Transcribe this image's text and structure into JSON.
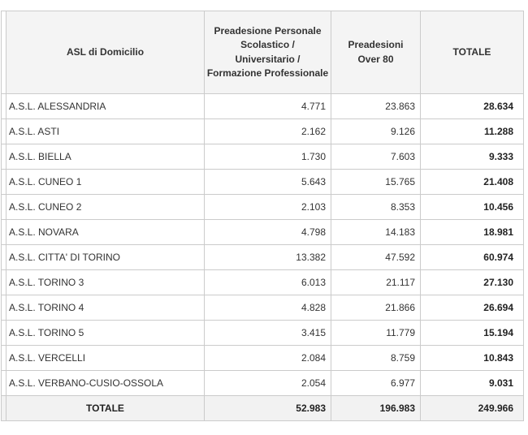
{
  "chart_data": {
    "type": "table",
    "title": "",
    "columns": [
      "ASL di Domicilio",
      "Preadesione Personale Scolastico / Universitario / Formazione Professionale",
      "Preadesioni Over 80",
      "TOTALE"
    ],
    "rows": [
      [
        "A.S.L. ALESSANDRIA",
        "4.771",
        "23.863",
        "28.634"
      ],
      [
        "A.S.L. ASTI",
        "2.162",
        "9.126",
        "11.288"
      ],
      [
        "A.S.L. BIELLA",
        "1.730",
        "7.603",
        "9.333"
      ],
      [
        "A.S.L. CUNEO 1",
        "5.643",
        "15.765",
        "21.408"
      ],
      [
        "A.S.L. CUNEO 2",
        "2.103",
        "8.353",
        "10.456"
      ],
      [
        "A.S.L. NOVARA",
        "4.798",
        "14.183",
        "18.981"
      ],
      [
        "A.S.L. CITTA' DI TORINO",
        "13.382",
        "47.592",
        "60.974"
      ],
      [
        "A.S.L. TORINO 3",
        "6.013",
        "21.117",
        "27.130"
      ],
      [
        "A.S.L. TORINO 4",
        "4.828",
        "21.866",
        "26.694"
      ],
      [
        "A.S.L. TORINO 5",
        "3.415",
        "11.779",
        "15.194"
      ],
      [
        "A.S.L. VERCELLI",
        "2.084",
        "8.759",
        "10.843"
      ],
      [
        "A.S.L. VERBANO-CUSIO-OSSOLA",
        "2.054",
        "6.977",
        "9.031"
      ]
    ],
    "footer_row": [
      "TOTALE",
      "52.983",
      "196.983",
      "249.966"
    ]
  },
  "header_lines": {
    "col_asl": {
      "lines": [
        "ASL di Domicilio"
      ]
    },
    "col_preadesione": {
      "lines": [
        "Preadesione Personale",
        "Scolastico /",
        "Universitario /",
        "Formazione Professionale"
      ]
    },
    "col_over80": {
      "lines": [
        "Preadesioni",
        "Over 80"
      ]
    },
    "col_totale": {
      "lines": [
        "TOTALE"
      ]
    }
  },
  "colors": {
    "border": "#cbcbcb",
    "header_bg": "#f4f4f4",
    "footer_bg": "#f2f2f2",
    "total_column_bg": "#f9f9f9",
    "text": "#333333",
    "bold_text": "#222222",
    "page_bg": "#ffffff"
  }
}
